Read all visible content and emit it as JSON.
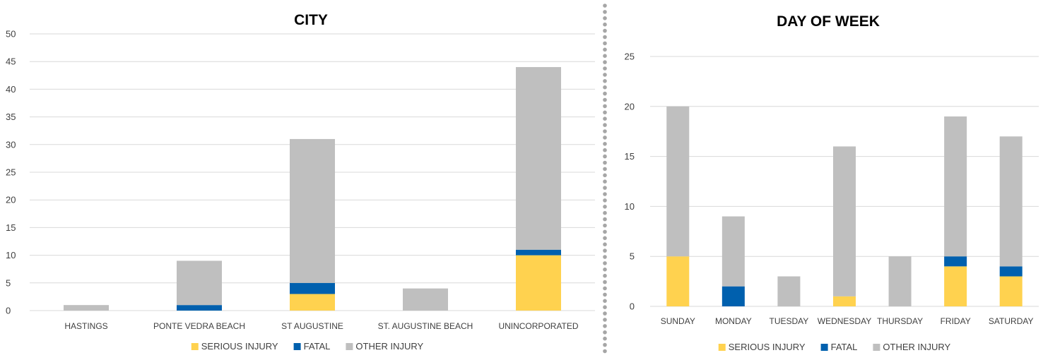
{
  "chart_data": [
    {
      "type": "bar",
      "stacked": true,
      "title": "CITY",
      "categories": [
        "HASTINGS",
        "PONTE VEDRA BEACH",
        "ST AUGUSTINE",
        "ST. AUGUSTINE BEACH",
        "UNINCORPORATED"
      ],
      "series": [
        {
          "name": "SERIOUS INJURY",
          "color": "#FFD24F",
          "values": [
            0,
            0,
            3,
            0,
            10
          ]
        },
        {
          "name": "FATAL",
          "color": "#0060AE",
          "values": [
            0,
            1,
            2,
            0,
            1
          ]
        },
        {
          "name": "OTHER INJURY",
          "color": "#BFBFBF",
          "values": [
            1,
            8,
            26,
            4,
            33
          ]
        }
      ],
      "ylim": [
        0,
        50
      ],
      "yticks": [
        0,
        5,
        10,
        15,
        20,
        25,
        30,
        35,
        40,
        45,
        50
      ],
      "grid": true,
      "legend": "bottom"
    },
    {
      "type": "bar",
      "stacked": true,
      "title": "DAY OF WEEK",
      "categories": [
        "SUNDAY",
        "MONDAY",
        "TUESDAY",
        "WEDNESDAY",
        "THURSDAY",
        "FRIDAY",
        "SATURDAY"
      ],
      "series": [
        {
          "name": "SERIOUS INJURY",
          "color": "#FFD24F",
          "values": [
            5,
            0,
            0,
            1,
            0,
            4,
            3
          ]
        },
        {
          "name": "FATAL",
          "color": "#0060AE",
          "values": [
            0,
            2,
            0,
            0,
            0,
            1,
            1
          ]
        },
        {
          "name": "OTHER INJURY",
          "color": "#BFBFBF",
          "values": [
            15,
            7,
            3,
            15,
            5,
            14,
            13
          ]
        }
      ],
      "ylim": [
        0,
        25
      ],
      "yticks": [
        0,
        5,
        10,
        15,
        20,
        25
      ],
      "grid": true,
      "legend": "bottom"
    }
  ]
}
